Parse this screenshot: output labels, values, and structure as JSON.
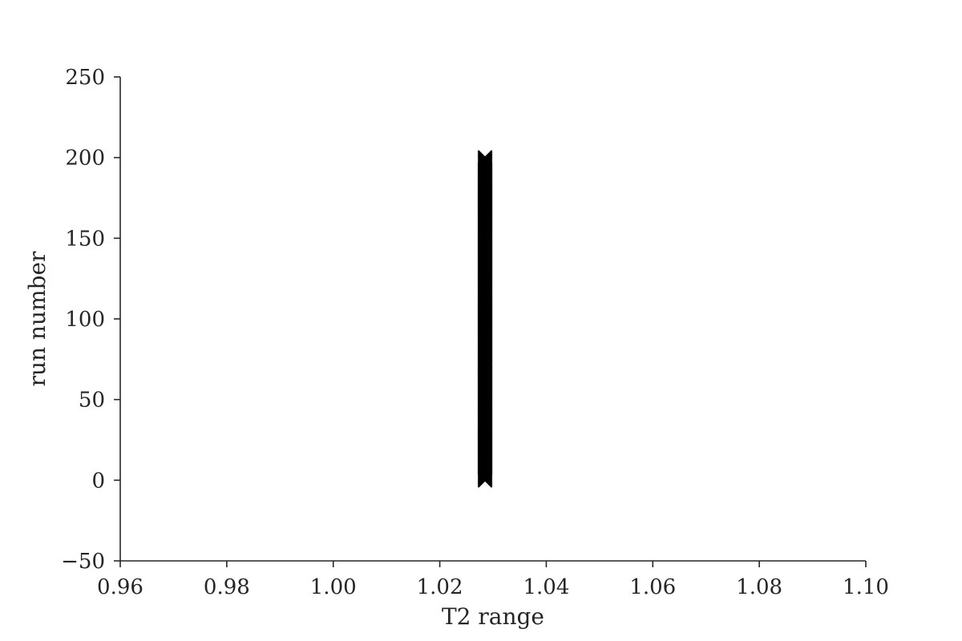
{
  "chart_data": {
    "type": "scatter",
    "title": "",
    "xlabel": "T2 range",
    "ylabel": "run number",
    "xlim": [
      0.96,
      1.1
    ],
    "ylim": [
      -50,
      250
    ],
    "xticks": [
      0.96,
      0.98,
      1.0,
      1.02,
      1.04,
      1.06,
      1.08,
      1.1
    ],
    "xtick_labels": [
      "0.96",
      "0.98",
      "1.00",
      "1.02",
      "1.04",
      "1.06",
      "1.08",
      "1.10"
    ],
    "yticks": [
      -50,
      0,
      50,
      100,
      150,
      200,
      250
    ],
    "ytick_labels": [
      "−50",
      "0",
      "50",
      "100",
      "150",
      "200",
      "250"
    ],
    "grid": false,
    "marker": "x",
    "series": [
      {
        "x_min": 1.0275,
        "x_max": 1.0295,
        "y_range": [
          0,
          200
        ]
      }
    ]
  }
}
